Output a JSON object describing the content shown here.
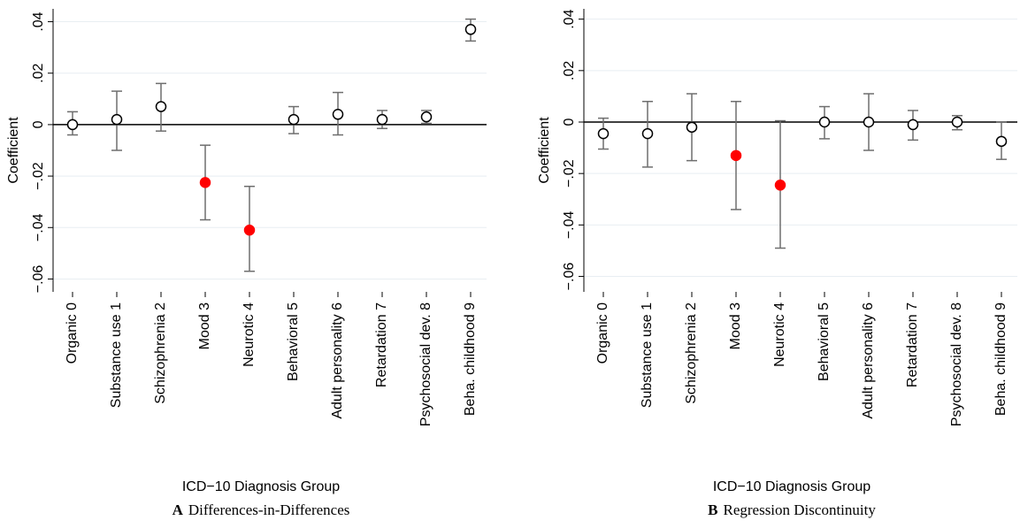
{
  "chart_data": [
    {
      "type": "errorbar",
      "y_label": "Coefficient",
      "x_label": "ICD−10 Diagnosis Group",
      "caption_label": "A",
      "caption": "Differences-in-Differences",
      "categories": [
        "Organic 0",
        "Substance use 1",
        "Schizophrenia 2",
        "Mood 3",
        "Neurotic 4",
        "Behavioral 5",
        "Adult personality 6",
        "Retardation 7",
        "Psychosocial dev. 8",
        "Beha. childhood 9"
      ],
      "values": [
        0.0,
        0.002,
        0.007,
        -0.0225,
        -0.041,
        0.002,
        0.004,
        0.002,
        0.003,
        0.037
      ],
      "lower": [
        -0.004,
        -0.01,
        -0.0025,
        -0.037,
        -0.057,
        -0.0035,
        -0.004,
        -0.0015,
        0.0005,
        0.0325
      ],
      "upper": [
        0.005,
        0.013,
        0.016,
        -0.008,
        -0.024,
        0.007,
        0.0125,
        0.0055,
        0.0055,
        0.041
      ],
      "marker_colors": [
        "white",
        "white",
        "white",
        "red",
        "red",
        "white",
        "white",
        "white",
        "white",
        "white"
      ],
      "ylim": [
        -0.065,
        0.045
      ],
      "yticks": [
        {
          "value": -0.06,
          "label": "−.06"
        },
        {
          "value": -0.04,
          "label": "−.04"
        },
        {
          "value": -0.02,
          "label": "−.02"
        },
        0,
        {
          "value": 0.02,
          "label": ".02"
        },
        {
          "value": 0.04,
          "label": ".04"
        }
      ],
      "grid": true
    },
    {
      "type": "errorbar",
      "y_label": "Coefficient",
      "x_label": "ICD−10 Diagnosis Group",
      "caption_label": "B",
      "caption": "Regression Discontinuity",
      "categories": [
        "Organic 0",
        "Substance use 1",
        "Schizophrenia 2",
        "Mood 3",
        "Neurotic 4",
        "Behavioral 5",
        "Adult personality 6",
        "Retardation 7",
        "Psychosocial dev. 8",
        "Beha. childhood 9"
      ],
      "values": [
        -0.0045,
        -0.0045,
        -0.002,
        -0.013,
        -0.0245,
        0.0,
        0.0,
        -0.001,
        0.0,
        -0.0075
      ],
      "lower": [
        -0.0105,
        -0.0175,
        -0.015,
        -0.034,
        -0.049,
        -0.0065,
        -0.011,
        -0.007,
        -0.003,
        -0.0145
      ],
      "upper": [
        0.0015,
        0.008,
        0.011,
        0.008,
        0.0005,
        0.006,
        0.011,
        0.0045,
        0.0025,
        0.0
      ],
      "marker_colors": [
        "white",
        "white",
        "white",
        "red",
        "red",
        "white",
        "white",
        "white",
        "white",
        "white"
      ],
      "ylim": [
        -0.066,
        0.044
      ],
      "yticks": [
        {
          "value": -0.06,
          "label": "−.06"
        },
        {
          "value": -0.04,
          "label": "−.04"
        },
        {
          "value": -0.02,
          "label": "−.02"
        },
        0,
        {
          "value": 0.02,
          "label": ".02"
        },
        {
          "value": 0.04,
          "label": ".04"
        }
      ],
      "grid": true
    }
  ]
}
